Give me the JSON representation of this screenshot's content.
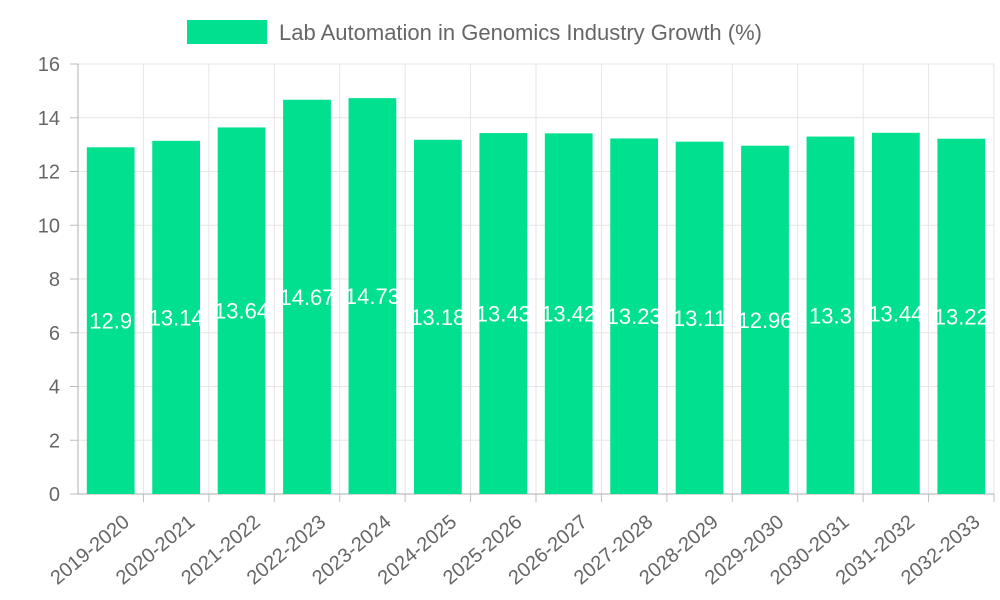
{
  "chart_data": {
    "type": "bar",
    "categories": [
      "2019-2020",
      "2020-2021",
      "2021-2022",
      "2022-2023",
      "2023-2024",
      "2024-2025",
      "2025-2026",
      "2026-2027",
      "2027-2028",
      "2028-2029",
      "2029-2030",
      "2030-2031",
      "2031-2032",
      "2032-2033"
    ],
    "series": [
      {
        "name": "Lab Automation in Genomics Industry Growth (%)",
        "values": [
          12.9,
          13.14,
          13.64,
          14.67,
          14.73,
          13.18,
          13.43,
          13.42,
          13.23,
          13.11,
          12.96,
          13.3,
          13.44,
          13.22
        ],
        "color": "#00e08e"
      }
    ],
    "data_labels": [
      "12.9",
      "13.14",
      "13.64",
      "14.67",
      "14.73",
      "13.18",
      "13.43",
      "13.42",
      "13.23",
      "13.11",
      "12.96",
      "13.3",
      "13.44",
      "13.22"
    ],
    "title": "",
    "xlabel": "",
    "ylabel": "",
    "ylim": [
      0,
      16
    ],
    "yticks": [
      0,
      2,
      4,
      6,
      8,
      10,
      12,
      14,
      16
    ],
    "ytick_labels": [
      "0",
      "2",
      "4",
      "6",
      "8",
      "10",
      "12",
      "14",
      "16"
    ],
    "grid": true,
    "legend_position": "top-center",
    "colors": {
      "bar": "#00e08e",
      "grid": "#e6e6e6",
      "axis": "#bdbdbd",
      "text": "#666666",
      "label_text": "#ffffff"
    }
  }
}
